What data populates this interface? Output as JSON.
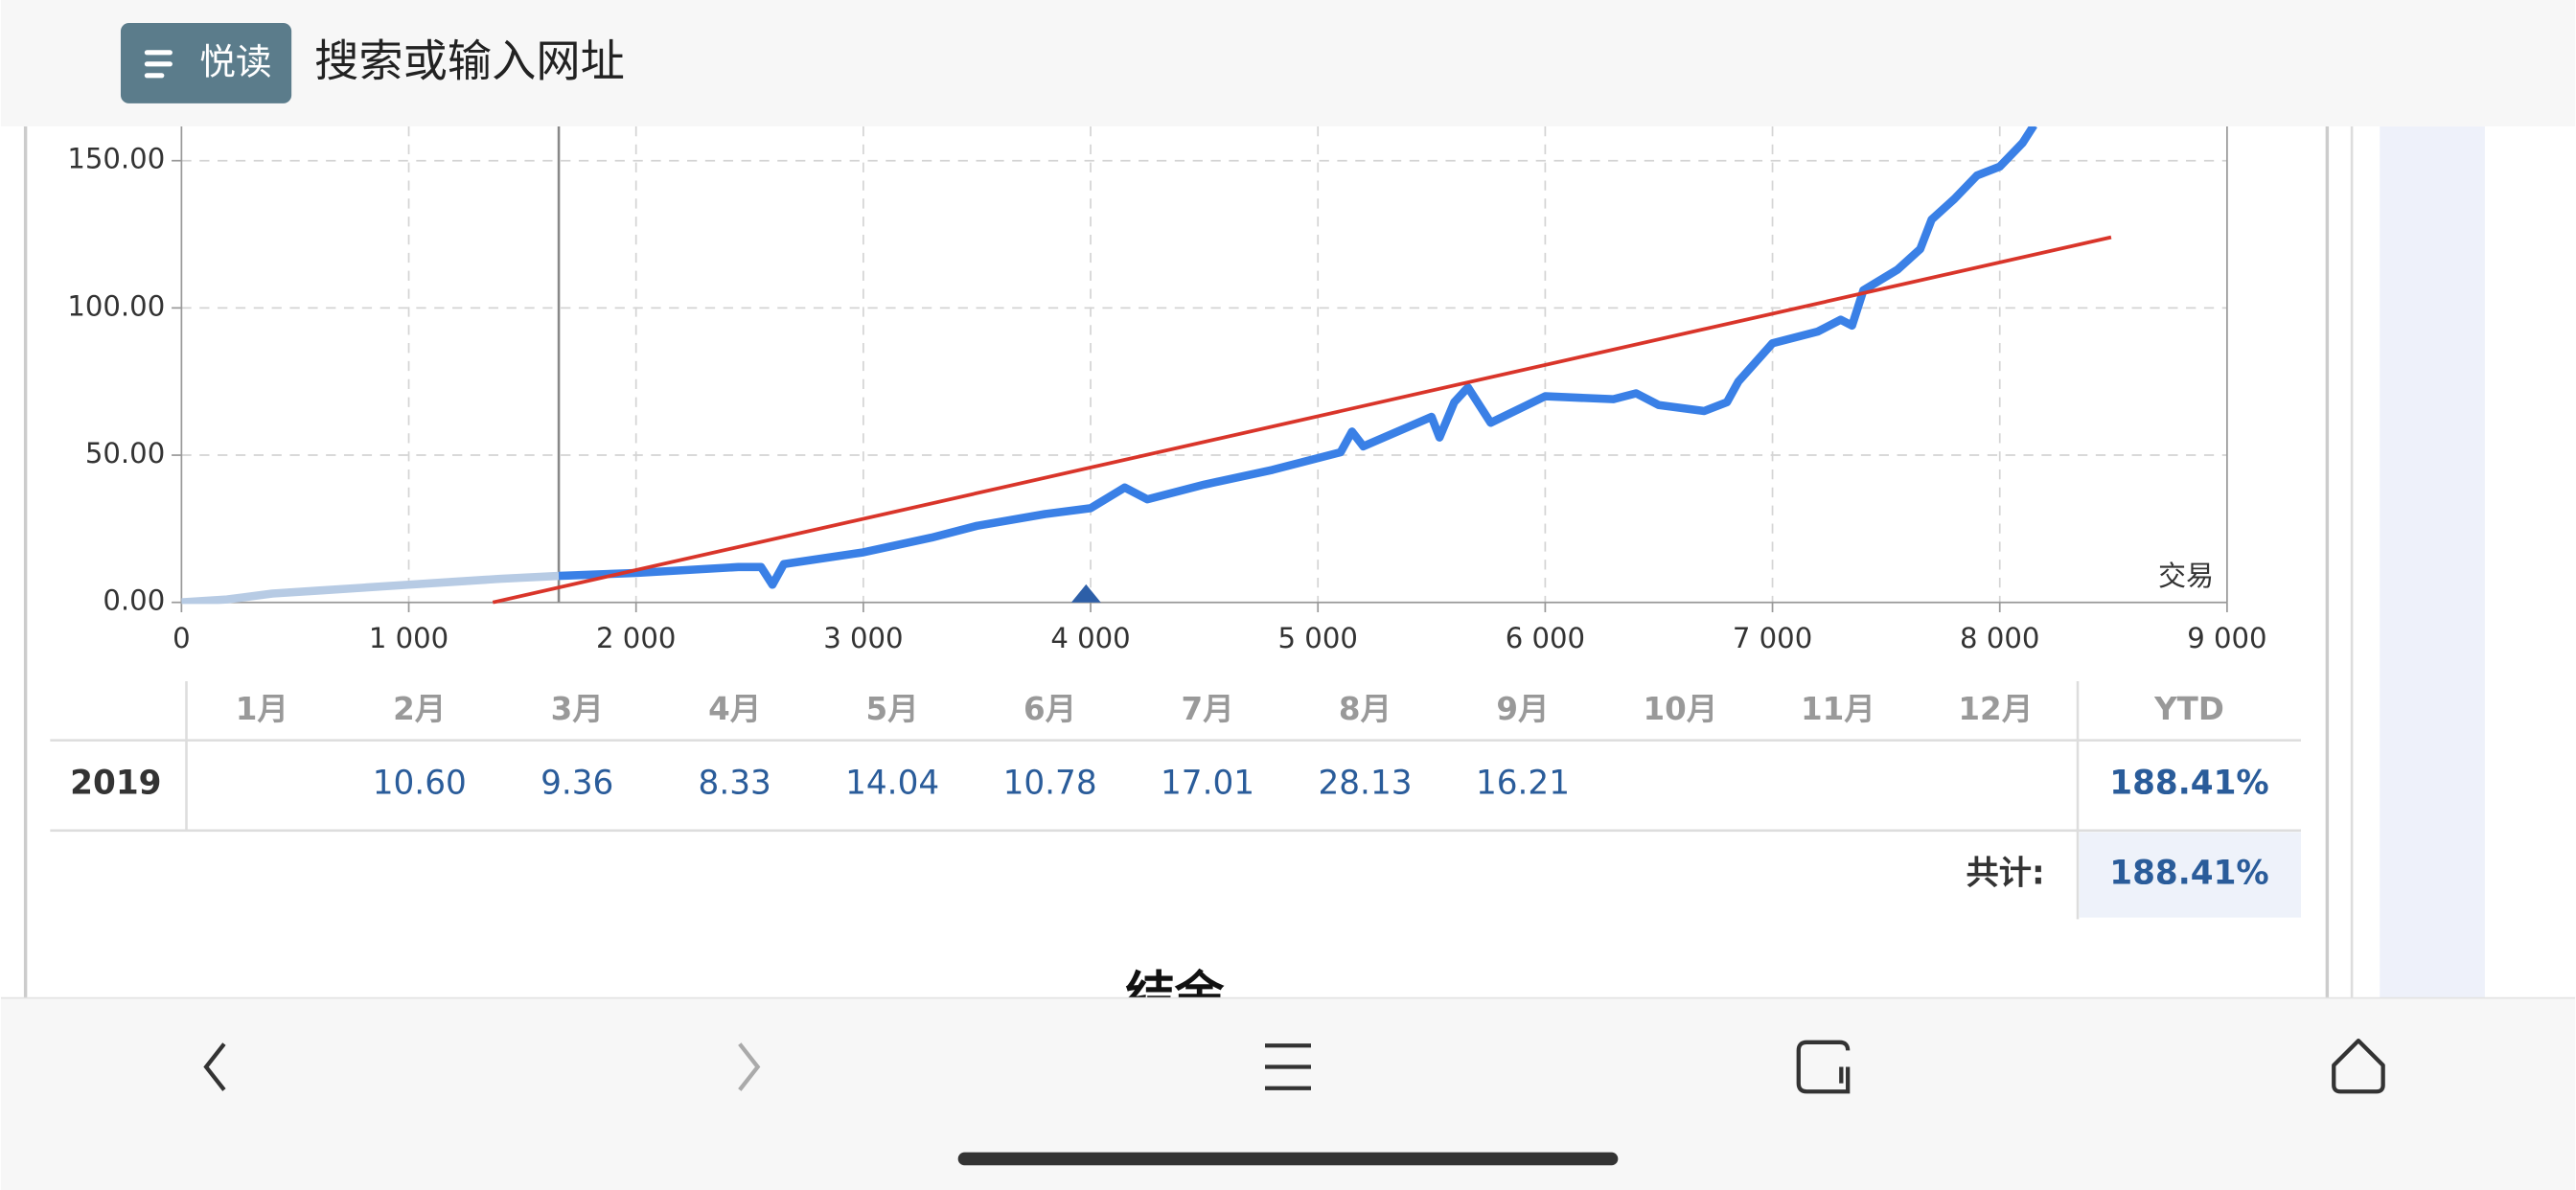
{
  "browser": {
    "reader_button": "悦读",
    "address_bar": "搜索或输入网址"
  },
  "chart_data": {
    "type": "line",
    "annotation": "交易",
    "xlim": [
      0,
      9000
    ],
    "xticks": [
      0,
      {
        "value": 1000,
        "label": "1 000"
      },
      {
        "value": 2000,
        "label": "2 000"
      },
      {
        "value": 3000,
        "label": "3 000"
      },
      {
        "value": 4000,
        "label": "4 000"
      },
      {
        "value": 5000,
        "label": "5 000"
      },
      {
        "value": 6000,
        "label": "6 000"
      },
      {
        "value": 7000,
        "label": "7 000"
      },
      {
        "value": 8000,
        "label": "8 000"
      },
      {
        "value": 9000,
        "label": "9 000"
      }
    ],
    "ylim": [
      0,
      160
    ],
    "yticks": [
      {
        "value": 0,
        "label": "0.00"
      },
      {
        "value": 50,
        "label": "50.00"
      },
      {
        "value": 100,
        "label": "100.00"
      },
      {
        "value": 150,
        "label": "150.00"
      }
    ],
    "grid": true,
    "series": [
      {
        "color": "#b7cbe4",
        "x": [
          0,
          200,
          400,
          600,
          800,
          1000,
          1200,
          1400,
          1660
        ],
        "values": [
          0,
          1,
          3,
          4,
          5,
          6,
          7,
          8,
          9
        ]
      },
      {
        "color": "#3a80e6",
        "x": [
          1660,
          2000,
          2450,
          2550,
          2600,
          2650,
          3000,
          3300,
          3500,
          3800,
          4000,
          4150,
          4250,
          4500,
          4800,
          5100,
          5150,
          5200,
          5500,
          5535,
          5600,
          5660,
          5760,
          6000,
          6300,
          6400,
          6500,
          6700,
          6800,
          6850,
          7000,
          7200,
          7300,
          7350,
          7400,
          7550,
          7650,
          7700,
          7800,
          7900,
          8000,
          8100,
          8150
        ],
        "values": [
          9,
          10,
          12,
          12,
          6,
          13,
          17,
          22,
          26,
          30,
          32,
          39,
          35,
          40,
          45,
          51,
          58,
          53,
          63,
          56,
          68,
          73,
          61,
          70,
          69,
          71,
          67,
          65,
          68,
          75,
          88,
          92,
          96,
          94,
          106,
          113,
          120,
          130,
          137,
          145,
          148,
          156,
          162
        ]
      },
      {
        "color": "#d9352a",
        "x": [
          1370,
          8490
        ],
        "values": [
          0,
          124
        ]
      }
    ],
    "vertical_line": {
      "x": 1660,
      "color": "#888888"
    },
    "markers": [
      {
        "x": 3980,
        "y": 0,
        "color": "#2d5fa8"
      }
    ]
  },
  "table": {
    "columns": [
      "1月",
      "2月",
      "3月",
      "4月",
      "5月",
      "6月",
      "7月",
      "8月",
      "9月",
      "10月",
      "11月",
      "12月"
    ],
    "ytd_header": "YTD",
    "rows": [
      {
        "year": "2019",
        "values": [
          null,
          "10.60",
          "9.36",
          "8.33",
          "14.04",
          "10.78",
          "17.01",
          "28.13",
          "16.21",
          null,
          null,
          null
        ],
        "ytd": "188.41%"
      }
    ],
    "total_label": "共计:",
    "total": "188.41%"
  },
  "section_heading": "结余"
}
